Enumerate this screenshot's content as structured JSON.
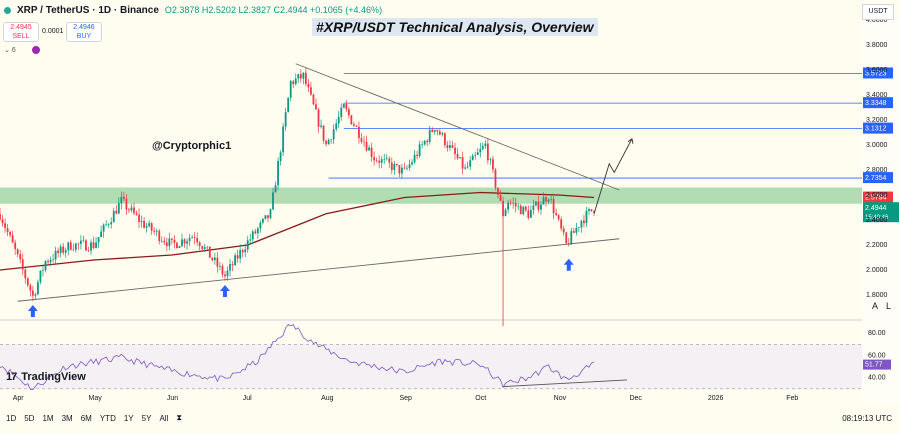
{
  "header": {
    "symbol": "XRP / TetherUS · 1D · Binance",
    "ohlc": "O2.3878  H2.5202  L2.3827  C2.4944  +0.1065 (+4.46%)",
    "sell_price": "2.4945",
    "sell_label": "SELL",
    "spread": "0.0001",
    "buy_price": "2.4946",
    "buy_label": "BUY",
    "indicator_count": "6",
    "currency": "USDT"
  },
  "title": "#XRP/USDT Technical Analysis, Overview",
  "watermark": "@Cryptorphic1",
  "brand": "TradingView",
  "bottom_bar": {
    "ranges": [
      "1D",
      "5D",
      "1M",
      "3M",
      "6M",
      "YTD",
      "1Y",
      "5Y",
      "All"
    ],
    "clock": "08:19:13 UTC",
    "axis_mode_a": "A",
    "axis_mode_l": "L"
  },
  "colors": {
    "up": "#089981",
    "down": "#f23645",
    "ma": "#8b1a1a",
    "rsi": "#7e57c2",
    "zone": "#a5d6a7",
    "level": "#2962ff",
    "arrow": "#2962ff"
  },
  "chart_data": {
    "type": "candlestick",
    "title": "#XRP/USDT Technical Analysis, Overview",
    "x_range": [
      "2025-03-25",
      "2026-03-01"
    ],
    "y_range": [
      1.6,
      4.0
    ],
    "x_ticks": [
      {
        "date": "2025-04-01",
        "label": "Apr"
      },
      {
        "date": "2025-05-01",
        "label": "May"
      },
      {
        "date": "2025-06-01",
        "label": "Jun"
      },
      {
        "date": "2025-07-01",
        "label": "Jul"
      },
      {
        "date": "2025-08-01",
        "label": "Aug"
      },
      {
        "date": "2025-09-01",
        "label": "Sep"
      },
      {
        "date": "2025-10-01",
        "label": "Oct"
      },
      {
        "date": "2025-11-01",
        "label": "Nov"
      },
      {
        "date": "2025-12-01",
        "label": "Dec"
      },
      {
        "date": "2026-01-01",
        "label": "2026"
      },
      {
        "date": "2026-02-01",
        "label": "Feb"
      }
    ],
    "y_ticks": [
      "1.8000",
      "2.0000",
      "2.2000",
      "2.4000",
      "2.6000",
      "2.8000",
      "3.0000",
      "3.2000",
      "3.4000",
      "3.6000",
      "3.8000",
      "4.0000"
    ],
    "closes": [
      {
        "date": "2025-03-25",
        "close": 2.45
      },
      {
        "date": "2025-04-01",
        "close": 2.1
      },
      {
        "date": "2025-04-07",
        "close": 1.79
      },
      {
        "date": "2025-04-12",
        "close": 2.07
      },
      {
        "date": "2025-04-22",
        "close": 2.2
      },
      {
        "date": "2025-05-01",
        "close": 2.2
      },
      {
        "date": "2025-05-12",
        "close": 2.55
      },
      {
        "date": "2025-05-20",
        "close": 2.38
      },
      {
        "date": "2025-06-01",
        "close": 2.2
      },
      {
        "date": "2025-06-10",
        "close": 2.28
      },
      {
        "date": "2025-06-22",
        "close": 1.95
      },
      {
        "date": "2025-06-30",
        "close": 2.2
      },
      {
        "date": "2025-07-10",
        "close": 2.45
      },
      {
        "date": "2025-07-18",
        "close": 3.5
      },
      {
        "date": "2025-07-23",
        "close": 3.55
      },
      {
        "date": "2025-08-01",
        "close": 3.0
      },
      {
        "date": "2025-08-08",
        "close": 3.3
      },
      {
        "date": "2025-08-20",
        "close": 2.9
      },
      {
        "date": "2025-09-01",
        "close": 2.78
      },
      {
        "date": "2025-09-13",
        "close": 3.15
      },
      {
        "date": "2025-09-25",
        "close": 2.8
      },
      {
        "date": "2025-10-03",
        "close": 3.0
      },
      {
        "date": "2025-10-10",
        "close": 2.45
      },
      {
        "date": "2025-10-12",
        "close": 2.55
      },
      {
        "date": "2025-10-20",
        "close": 2.45
      },
      {
        "date": "2025-10-28",
        "close": 2.6
      },
      {
        "date": "2025-11-04",
        "close": 2.2
      },
      {
        "date": "2025-11-10",
        "close": 2.4
      },
      {
        "date": "2025-11-15",
        "close": 2.4944
      }
    ],
    "moving_average": [
      {
        "date": "2025-03-25",
        "value": 2.0
      },
      {
        "date": "2025-05-01",
        "value": 2.08
      },
      {
        "date": "2025-06-01",
        "value": 2.12
      },
      {
        "date": "2025-07-01",
        "value": 2.2
      },
      {
        "date": "2025-08-01",
        "value": 2.45
      },
      {
        "date": "2025-09-01",
        "value": 2.58
      },
      {
        "date": "2025-10-01",
        "value": 2.62
      },
      {
        "date": "2025-11-01",
        "value": 2.6
      },
      {
        "date": "2025-11-15",
        "value": 2.58
      }
    ],
    "horizontal_levels": [
      3.5723,
      3.3348,
      3.1312,
      2.7354
    ],
    "level_labels": [
      "3.5723",
      "3.3348",
      "3.1312",
      "2.7354"
    ],
    "ma_label": "2.5794",
    "price_label": "2.4944",
    "countdown": "15:40:46",
    "support_zone": [
      2.53,
      2.66
    ],
    "trendlines": [
      {
        "name": "resistance",
        "from": {
          "date": "2025-07-20",
          "price": 3.65
        },
        "to": {
          "date": "2025-11-25",
          "price": 2.64
        }
      },
      {
        "name": "support",
        "from": {
          "date": "2025-04-01",
          "price": 1.75
        },
        "to": {
          "date": "2025-11-25",
          "price": 2.25
        }
      }
    ],
    "projection": [
      {
        "date": "2025-11-15",
        "price": 2.45
      },
      {
        "date": "2025-11-21",
        "price": 2.85
      },
      {
        "date": "2025-11-23",
        "price": 2.78
      },
      {
        "date": "2025-11-30",
        "price": 3.05
      }
    ],
    "markers": [
      {
        "date": "2025-04-07",
        "price": 1.72
      },
      {
        "date": "2025-06-22",
        "price": 1.88
      },
      {
        "date": "2025-11-05",
        "price": 2.09
      }
    ],
    "rsi": {
      "y_range": [
        20,
        90
      ],
      "ticks": [
        "80.00",
        "60.00",
        "40.00"
      ],
      "upper": 70,
      "lower": 30,
      "current": "51.77",
      "values": [
        {
          "date": "2025-03-25",
          "value": 52
        },
        {
          "date": "2025-04-07",
          "value": 30
        },
        {
          "date": "2025-04-20",
          "value": 50
        },
        {
          "date": "2025-05-12",
          "value": 58
        },
        {
          "date": "2025-06-01",
          "value": 46
        },
        {
          "date": "2025-06-22",
          "value": 38
        },
        {
          "date": "2025-07-05",
          "value": 55
        },
        {
          "date": "2025-07-18",
          "value": 88
        },
        {
          "date": "2025-07-28",
          "value": 70
        },
        {
          "date": "2025-08-10",
          "value": 55
        },
        {
          "date": "2025-09-01",
          "value": 45
        },
        {
          "date": "2025-09-15",
          "value": 55
        },
        {
          "date": "2025-10-01",
          "value": 52
        },
        {
          "date": "2025-10-10",
          "value": 34
        },
        {
          "date": "2025-10-20",
          "value": 40
        },
        {
          "date": "2025-10-28",
          "value": 50
        },
        {
          "date": "2025-11-04",
          "value": 38
        },
        {
          "date": "2025-11-15",
          "value": 51.77
        }
      ]
    }
  }
}
